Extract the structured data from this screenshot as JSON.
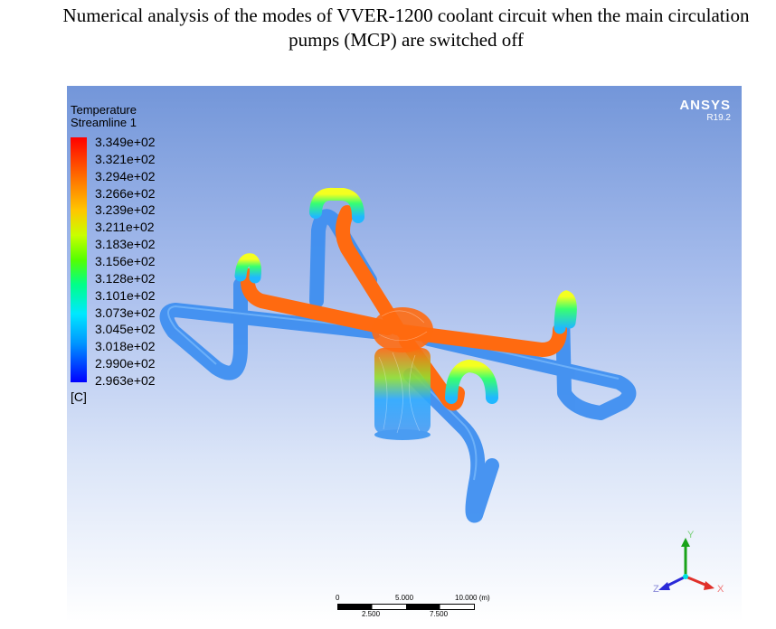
{
  "title": "Numerical analysis of the modes of VVER-1200 coolant circuit when the main circulation pumps (MCP) are switched off",
  "legend": {
    "variable": "Temperature",
    "object": "Streamline 1",
    "unit": "[C]",
    "ticks": [
      "3.349e+02",
      "3.321e+02",
      "3.294e+02",
      "3.266e+02",
      "3.239e+02",
      "3.211e+02",
      "3.183e+02",
      "3.156e+02",
      "3.128e+02",
      "3.101e+02",
      "3.073e+02",
      "3.045e+02",
      "3.018e+02",
      "2.990e+02",
      "2.963e+02"
    ]
  },
  "branding": {
    "name": "ANSYS",
    "version": "R19.2"
  },
  "scale_bar": {
    "top_labels": [
      "0",
      "5.000",
      "10.000  (m)"
    ],
    "bottom_labels": [
      "2.500",
      "7.500"
    ]
  },
  "axes": {
    "x": "X",
    "y": "Y",
    "z": "Z"
  },
  "colors": {
    "hot": "#ff6a10",
    "cold": "#3f8ff0",
    "accent_green": "#19a319",
    "axis_red": "#e0302a",
    "axis_blue": "#2a2ad8"
  }
}
